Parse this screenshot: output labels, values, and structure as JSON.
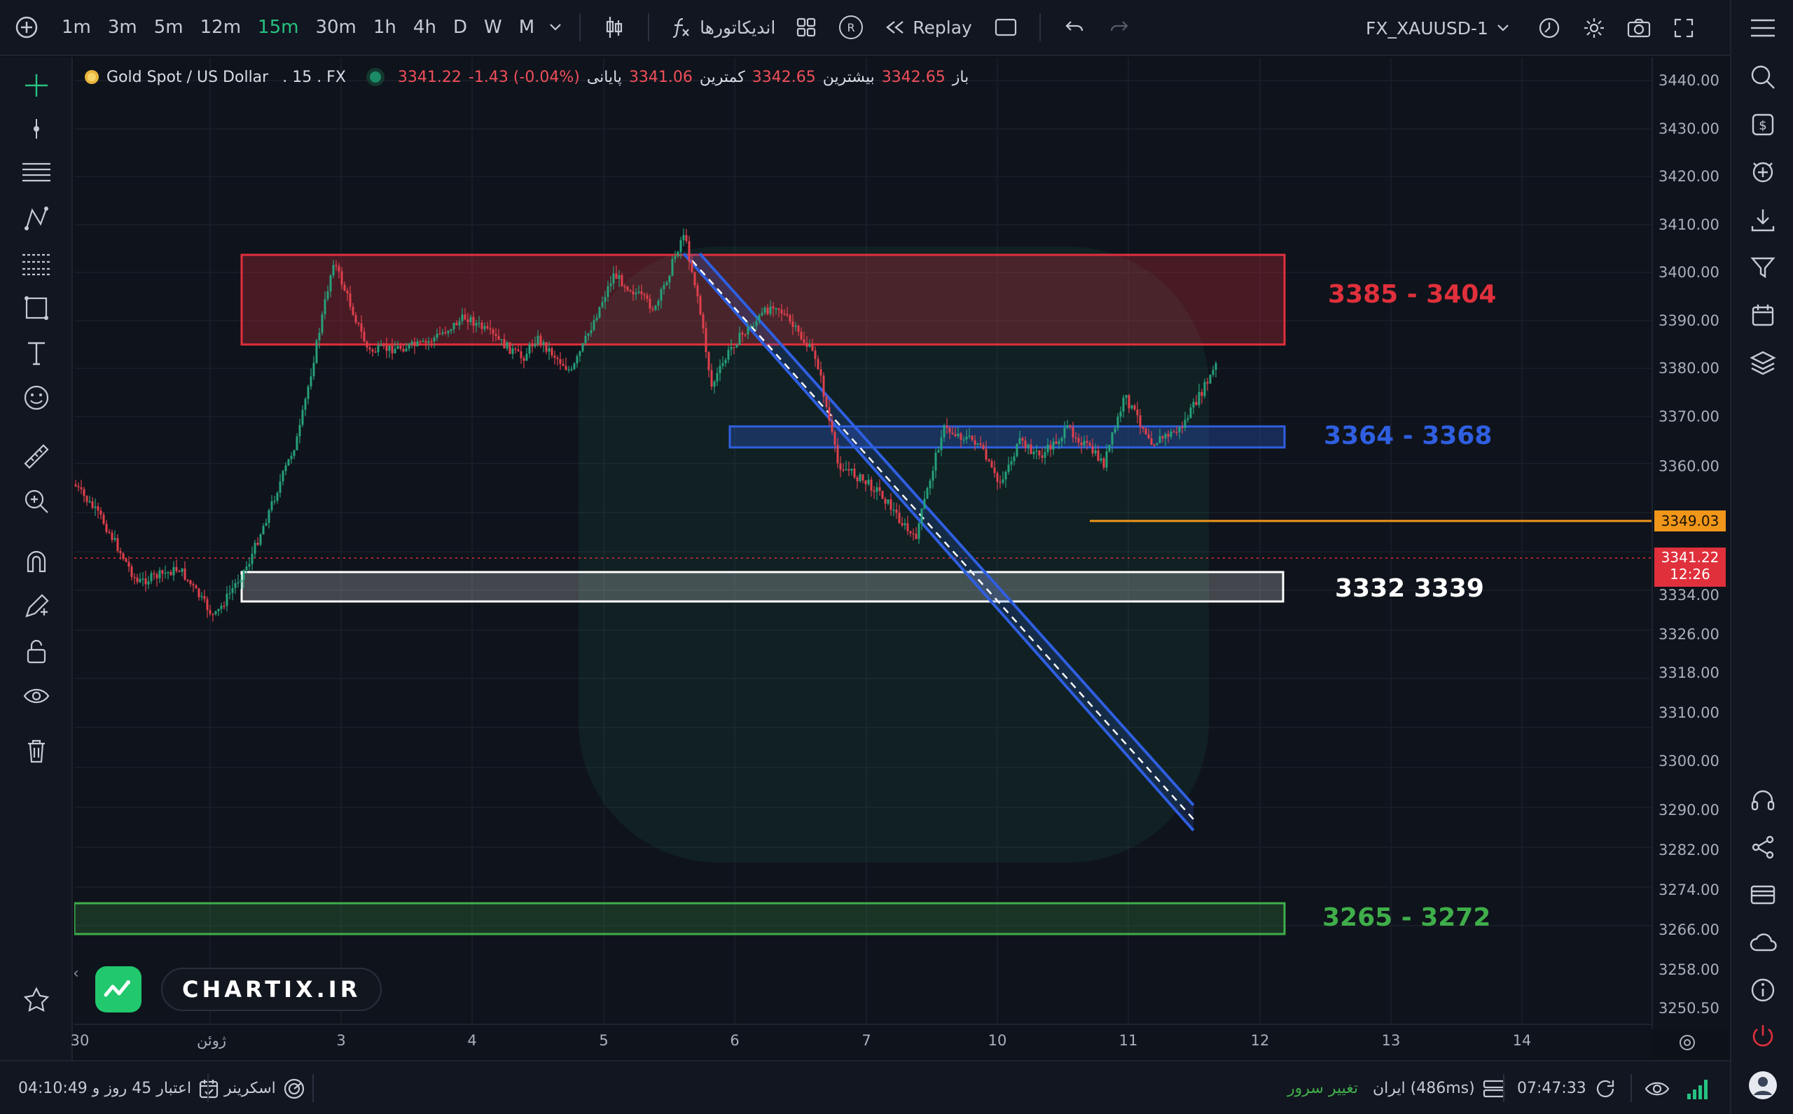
{
  "toolbar": {
    "timeframes": [
      "1m",
      "3m",
      "5m",
      "12m",
      "15m",
      "30m",
      "1h",
      "4h",
      "D",
      "W",
      "M"
    ],
    "active_timeframe": "15m",
    "indicators_label": "اندیکاتورها",
    "replay_label": "Replay",
    "symbol": "FX_XAUUSD-1"
  },
  "legend": {
    "symbol": "Gold Spot / US Dollar",
    "interval": ". 15 . FX",
    "open_label": "باز",
    "open_value": "3342.65",
    "high_label": "بیشترین",
    "high_value": "3342.65",
    "low_label": "کمترین",
    "low_value": "3341.06",
    "close_label": "پایانی",
    "close_value": "3341.22",
    "change": "-1.43 (-0.04%)"
  },
  "price_axis": {
    "ticks": [
      "3440.00",
      "3430.00",
      "3420.00",
      "3410.00",
      "3400.00",
      "3390.00",
      "3380.00",
      "3370.00",
      "3360.00",
      "3334.00",
      "3326.00",
      "3318.00",
      "3310.00",
      "3300.00",
      "3290.00",
      "3282.00",
      "3274.00",
      "3266.00",
      "3258.00",
      "3250.50"
    ],
    "level_tag": "3349.03",
    "last_price_tag": "3341.22",
    "countdown_tag": "12:26"
  },
  "time_axis": {
    "ticks": [
      "30",
      "ژوئن",
      "3",
      "4",
      "5",
      "6",
      "7",
      "10",
      "11",
      "12",
      "13",
      "14"
    ]
  },
  "zones": {
    "red": "3385 - 3404",
    "blue": "3364 - 3368",
    "white": "3332 3339",
    "green": "3265 - 3272"
  },
  "colors": {
    "red_zone": "#e0303c",
    "blue_zone": "#2f5fe0",
    "white_zone": "#ffffff",
    "green_zone": "#3fae4a",
    "level_line": "#f0961a",
    "active": "#26c281"
  },
  "brand": {
    "name": "CHARTIX.IR"
  },
  "statusbar": {
    "credit": "اعتبار 45 روز و 04:10:49",
    "screener": "اسکرینر",
    "server_change": "تغییر سرور",
    "server": "ایران (486ms)",
    "time": "07:47:33"
  }
}
